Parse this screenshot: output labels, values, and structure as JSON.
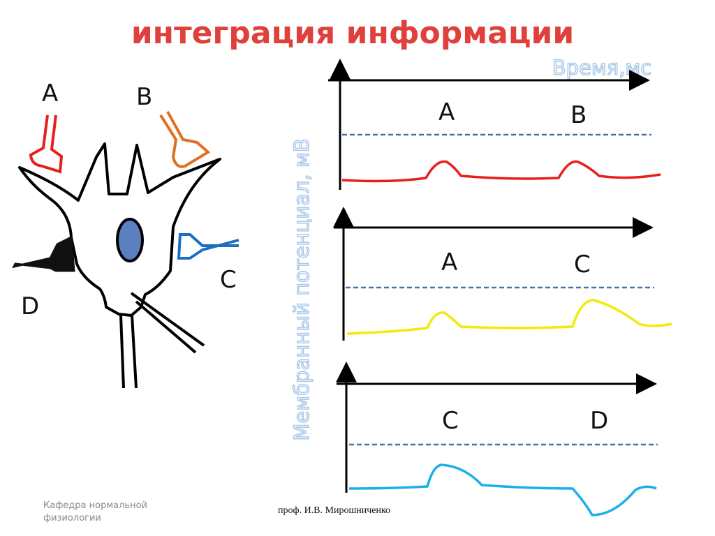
{
  "title": "интеграция информации",
  "neuron": {
    "labels": [
      "A",
      "B",
      "C",
      "D"
    ]
  },
  "axes": {
    "x_label": "Время,мс",
    "y_label": "Мембранный потенциал, мВ"
  },
  "panels": [
    {
      "labels": [
        "A",
        "B"
      ]
    },
    {
      "labels": [
        "A",
        "C"
      ]
    },
    {
      "labels": [
        "C",
        "D"
      ]
    }
  ],
  "footer": {
    "department": "Кафедра нормальной физиологии",
    "author": "проф. И.В. Мирошниченко"
  }
}
